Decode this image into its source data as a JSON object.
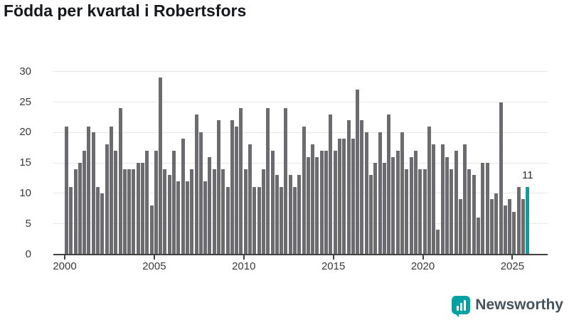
{
  "title": "Födda per kvartal i Robertsfors",
  "chart_data": {
    "type": "bar",
    "title": "Födda per kvartal i Robertsfors",
    "x_start_year": 2000,
    "x_start_quarter": 1,
    "frequency": "quarterly",
    "values": [
      21,
      11,
      14,
      15,
      17,
      21,
      20,
      11,
      10,
      18,
      21,
      17,
      24,
      14,
      14,
      14,
      15,
      15,
      17,
      8,
      17,
      29,
      14,
      13,
      17,
      12,
      19,
      12,
      14,
      23,
      20,
      12,
      16,
      14,
      22,
      14,
      11,
      22,
      21,
      24,
      14,
      18,
      11,
      11,
      14,
      24,
      17,
      13,
      11,
      24,
      13,
      11,
      13,
      21,
      16,
      18,
      16,
      17,
      17,
      23,
      17,
      19,
      19,
      22,
      19,
      27,
      22,
      20,
      13,
      15,
      20,
      15,
      23,
      16,
      17,
      20,
      14,
      16,
      17,
      14,
      14,
      21,
      18,
      4,
      18,
      16,
      14,
      17,
      9,
      18,
      14,
      13,
      6,
      15,
      15,
      9,
      10,
      25,
      8,
      9,
      7,
      11,
      9,
      11
    ],
    "ylim": [
      0,
      30
    ],
    "yticks": [
      0,
      5,
      10,
      15,
      20,
      25,
      30
    ],
    "xticks": [
      "2000",
      "2005",
      "2010",
      "2015",
      "2020",
      "2025"
    ],
    "grid": "horizontal",
    "bar_color": "#6c6c70",
    "highlight_index": 103,
    "highlight_color": "#00a2a3",
    "annotation": {
      "text": "11",
      "index": 103
    }
  },
  "footer": {
    "brand": "Newsworthy",
    "brand_accent": "#00a2a3"
  }
}
